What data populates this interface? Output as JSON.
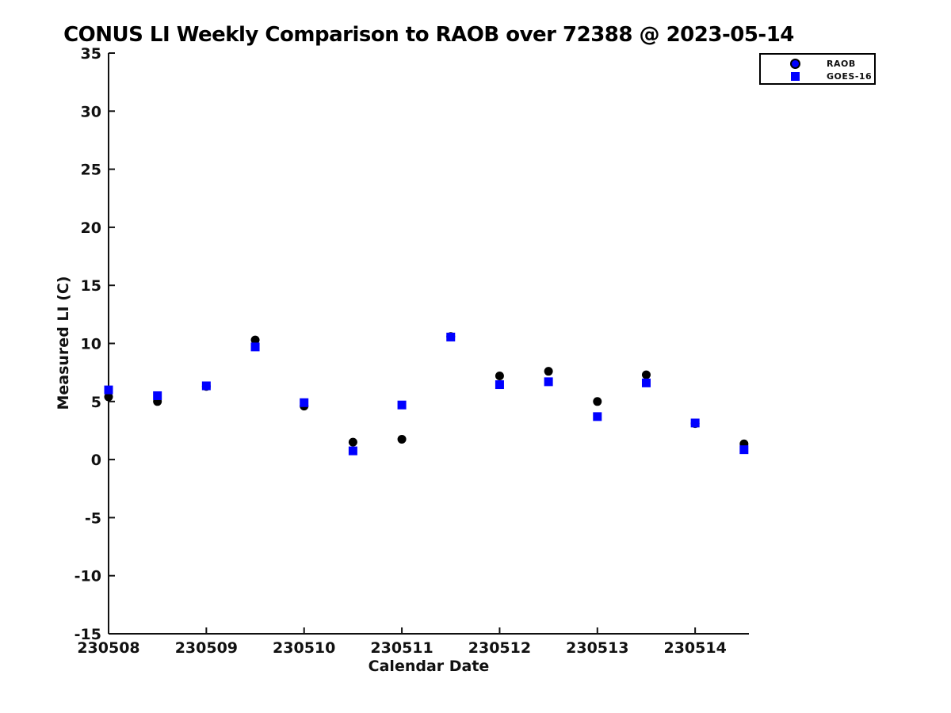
{
  "figure": {
    "background": "#ffffff"
  },
  "chart_data": {
    "type": "scatter",
    "title": "CONUS LI Weekly Comparison to RAOB over 72388 @ 2023-05-14",
    "xlabel": "Calendar Date",
    "ylabel": "Measured LI (C)",
    "grid": false,
    "legend_position": "top-right",
    "x_tick_labels": [
      "230508",
      "230509",
      "230510",
      "230511",
      "230512",
      "230513",
      "230514"
    ],
    "x_axis": {
      "min_offset_days": 0,
      "max_offset_days": 6.55,
      "tick_offsets": [
        0,
        1,
        2,
        3,
        4,
        5,
        6
      ]
    },
    "ylim": [
      -15,
      35
    ],
    "y_ticks": [
      35,
      30,
      25,
      20,
      15,
      10,
      5,
      0,
      -5,
      -10,
      -15
    ],
    "axis_color": "#111111",
    "series": [
      {
        "name": "RAOB",
        "marker": "circle",
        "plot_color": "#000000",
        "legend_fill": "#0000ff",
        "legend_edge": "#000000",
        "x_offsets": [
          0,
          0.5,
          1,
          1.5,
          2,
          2.5,
          3,
          3.5,
          4,
          4.5,
          5,
          5.5,
          6,
          6.5
        ],
        "values": [
          5.4,
          5.0,
          6.3,
          10.3,
          4.6,
          1.5,
          1.75,
          10.6,
          7.2,
          7.6,
          5.0,
          7.3,
          3.1,
          1.35
        ]
      },
      {
        "name": "GOES-16",
        "marker": "square",
        "plot_color": "#0000ff",
        "x_offsets": [
          0,
          0.5,
          1,
          1.5,
          2,
          2.5,
          3,
          3.5,
          4,
          4.5,
          5,
          5.5,
          6,
          6.5
        ],
        "values": [
          6.0,
          5.5,
          6.35,
          9.7,
          4.9,
          0.75,
          4.7,
          10.55,
          6.45,
          6.7,
          3.7,
          6.6,
          3.15,
          0.85
        ]
      }
    ]
  }
}
